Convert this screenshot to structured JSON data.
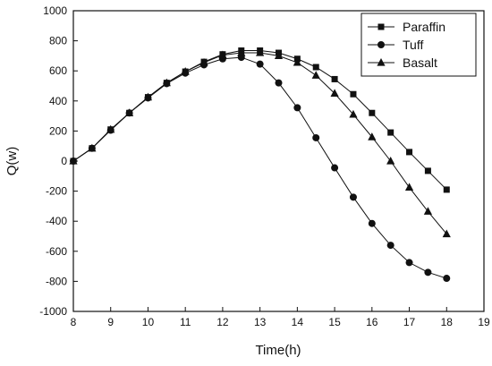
{
  "chart_data": {
    "type": "line",
    "xlabel": "Time(h)",
    "ylabel": "Q(w)",
    "xlim": [
      8,
      19
    ],
    "ylim": [
      -1000,
      1000
    ],
    "xticks": [
      8,
      9,
      10,
      11,
      12,
      13,
      14,
      15,
      16,
      17,
      18,
      19
    ],
    "yticks": [
      -1000,
      -800,
      -600,
      -400,
      -200,
      0,
      200,
      400,
      600,
      800,
      1000
    ],
    "x": [
      8,
      8.5,
      9,
      9.5,
      10,
      10.5,
      11,
      11.5,
      12,
      12.5,
      13,
      13.5,
      14,
      14.5,
      15,
      15.5,
      16,
      16.5,
      17,
      17.5,
      18
    ],
    "grid": false,
    "legend_position": "top-right",
    "series": [
      {
        "name": "Paraffin",
        "marker": "square",
        "values": [
          0,
          85,
          210,
          320,
          425,
          520,
          595,
          660,
          710,
          735,
          735,
          720,
          680,
          625,
          545,
          445,
          320,
          190,
          60,
          -65,
          -190
        ]
      },
      {
        "name": "Tuff",
        "marker": "circle",
        "values": [
          0,
          85,
          205,
          320,
          420,
          515,
          585,
          640,
          680,
          690,
          645,
          520,
          355,
          155,
          -45,
          -240,
          -415,
          -560,
          -675,
          -740,
          -780
        ]
      },
      {
        "name": "Basalt",
        "marker": "triangle",
        "values": [
          0,
          85,
          210,
          320,
          425,
          520,
          595,
          655,
          705,
          720,
          720,
          700,
          655,
          570,
          450,
          310,
          160,
          0,
          -175,
          -335,
          -485
        ]
      }
    ]
  }
}
